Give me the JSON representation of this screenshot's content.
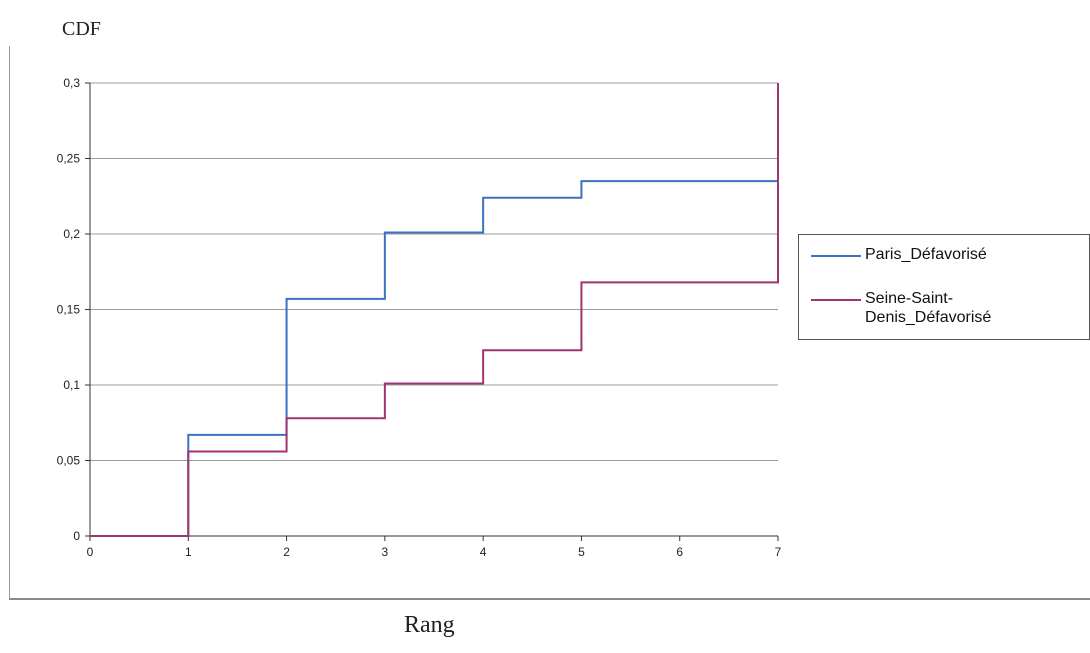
{
  "page": {
    "ylabel": "CDF",
    "xlabel": "Rang"
  },
  "chart_data": {
    "type": "line",
    "step": "post",
    "title": "",
    "xlabel": "Rang",
    "ylabel": "CDF",
    "xlim": [
      0,
      7
    ],
    "ylim": [
      0,
      0.3
    ],
    "xticks": [
      0,
      1,
      2,
      3,
      4,
      5,
      6,
      7
    ],
    "yticks": [
      0,
      0.05,
      0.1,
      0.15,
      0.2,
      0.25,
      0.3
    ],
    "xtick_labels": [
      "0",
      "1",
      "2",
      "3",
      "4",
      "5",
      "6",
      "7"
    ],
    "ytick_labels": [
      "0",
      "0,05",
      "0,1",
      "0,15",
      "0,2",
      "0,25",
      "0,3"
    ],
    "grid": "horizontal",
    "legend_position": "right",
    "series": [
      {
        "name": "Paris_Défavorisé",
        "color": "#3a72c4",
        "x": [
          0,
          1,
          2,
          3,
          4,
          5,
          7
        ],
        "y": [
          0,
          0.067,
          0.157,
          0.201,
          0.224,
          0.235,
          0.235
        ]
      },
      {
        "name": "Seine-Saint-\nDenis_Défavorisé",
        "color": "#a1336f",
        "x": [
          0,
          1,
          2,
          3,
          4,
          5,
          7,
          7
        ],
        "y": [
          0,
          0.056,
          0.078,
          0.101,
          0.123,
          0.168,
          0.168,
          0.3
        ]
      }
    ]
  }
}
